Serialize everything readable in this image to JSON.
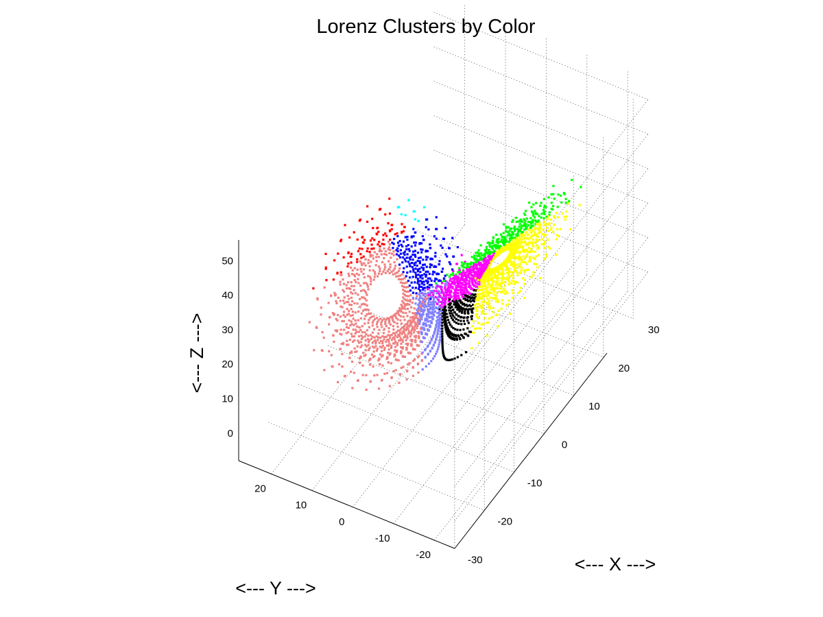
{
  "chart_data": {
    "type": "scatter",
    "title": "Lorenz Clusters by Color",
    "xlabel": "<--- X --->",
    "ylabel": "<--- Y --->",
    "zlabel": "<--- Z --->",
    "xlim": [
      -30,
      35
    ],
    "ylim": [
      -25,
      28
    ],
    "zlim": [
      -8,
      56
    ],
    "xticks": [
      -30,
      -20,
      -10,
      0,
      10,
      20,
      30
    ],
    "yticks": [
      -20,
      -10,
      0,
      10,
      20
    ],
    "zticks": [
      0,
      10,
      20,
      30,
      40,
      50
    ],
    "grid": true,
    "clusters": [
      {
        "color": "#ff0000",
        "region": "upper-left lobe (top)"
      },
      {
        "color": "#f08080",
        "region": "upper-left lobe (lower side)"
      },
      {
        "color": "#00ffff",
        "region": "upper-left lobe (right side)"
      },
      {
        "color": "#0000ff",
        "region": "crossing region"
      },
      {
        "color": "#8080ff",
        "region": "outer right trajectory"
      },
      {
        "color": "#00ff00",
        "region": "crossing to lower lobe"
      },
      {
        "color": "#ffff00",
        "region": "lower-left wing"
      },
      {
        "color": "#ff00ff",
        "region": "lower lobe outer"
      },
      {
        "color": "#000000",
        "region": "lower-right lobe core"
      }
    ]
  }
}
